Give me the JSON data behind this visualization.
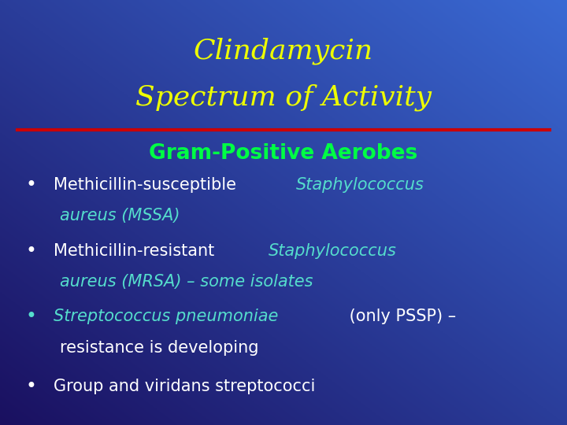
{
  "title_line1": "Clindamycin",
  "title_line2": "Spectrum of Activity",
  "title_color": "#EEFF00",
  "section_header": "Gram-Positive Aerobes",
  "section_header_color": "#00FF44",
  "divider_color": "#CC0000",
  "bg_top_left": "#1a1060",
  "bg_bottom_right": "#3a6ad4",
  "white_color": "#FFFFFF",
  "cyan_color": "#55DDCC",
  "title_fontsize": 26,
  "header_fontsize": 19,
  "bullet_fontsize": 15
}
